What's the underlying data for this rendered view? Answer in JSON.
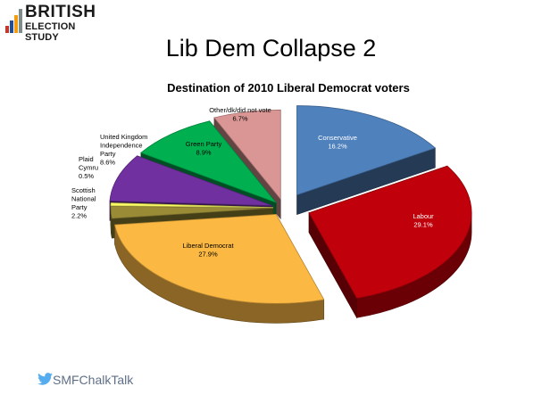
{
  "header": {
    "logo_line1": "BRITISH",
    "logo_line2": "ELECTION STUDY",
    "slide_title": "Lib Dem Collapse 2"
  },
  "chart_data": {
    "type": "pie",
    "title": "Destination of 2010 Liberal Democrat voters",
    "value_unit": "%",
    "slices": [
      {
        "label": "Conservative",
        "value": 16.2,
        "value_text": "16.2%",
        "color": "#4f81bd"
      },
      {
        "label": "Labour",
        "value": 29.1,
        "value_text": "29.1%",
        "color": "#c0000b"
      },
      {
        "label": "Liberal Democrat",
        "value": 27.9,
        "value_text": "27.9%",
        "color": "#fbb843"
      },
      {
        "label": "Scottish National Party",
        "value": 2.2,
        "value_text": "2.2%",
        "color": "#9a8c36"
      },
      {
        "label": "Plaid Cymru",
        "value": 0.5,
        "value_text": "0.5%",
        "color": "#ffff66"
      },
      {
        "label": "United Kingdom Independence Party",
        "value": 8.6,
        "value_text": "8.6%",
        "color": "#7030a0"
      },
      {
        "label": "Green Party",
        "value": 8.9,
        "value_text": "8.9%",
        "color": "#00b050"
      },
      {
        "label": "Other/dk/did not vote",
        "value": 6.7,
        "value_text": "6.7%",
        "color": "#d99694"
      }
    ]
  },
  "footer": {
    "twitter_handle": "SMFChalkTalk",
    "twitter_color": "#55acee"
  }
}
